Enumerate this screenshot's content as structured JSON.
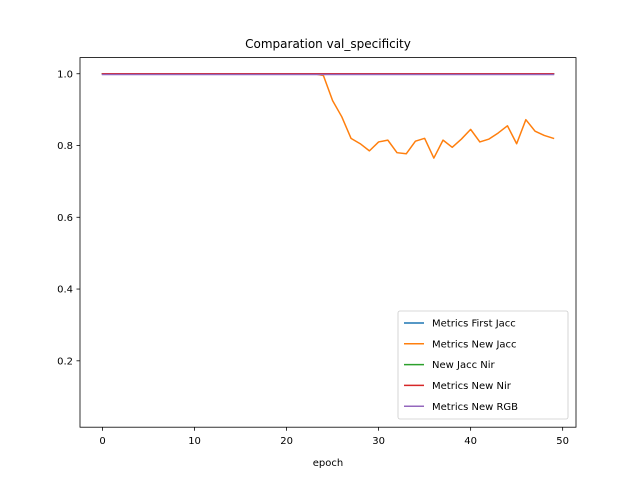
{
  "chart_data": {
    "type": "line",
    "title": "Comparation val_specificity",
    "xlabel": "epoch",
    "ylabel": "",
    "xlim": [
      -2.45,
      51.45
    ],
    "ylim": [
      0.015,
      1.045
    ],
    "x_ticks": [
      0,
      10,
      20,
      30,
      40,
      50
    ],
    "y_ticks": [
      0.2,
      0.4,
      0.6,
      0.8,
      1.0
    ],
    "x_tick_labels": [
      "0",
      "10",
      "20",
      "30",
      "40",
      "50"
    ],
    "y_tick_labels": [
      "0.2",
      "0.4",
      "0.6",
      "0.8",
      "1.0"
    ],
    "grid": false,
    "legend_position": "lower-right",
    "x": [
      0,
      1,
      2,
      3,
      4,
      5,
      6,
      7,
      8,
      9,
      10,
      11,
      12,
      13,
      14,
      15,
      16,
      17,
      18,
      19,
      20,
      21,
      22,
      23,
      24,
      25,
      26,
      27,
      28,
      29,
      30,
      31,
      32,
      33,
      34,
      35,
      36,
      37,
      38,
      39,
      40,
      41,
      42,
      43,
      44,
      45,
      46,
      47,
      48,
      49
    ],
    "series": [
      {
        "name": "Metrics First Jacc",
        "color": "#1f77b4",
        "values": [
          1.0,
          1.0,
          1.0,
          1.0,
          1.0,
          1.0,
          1.0,
          1.0,
          1.0,
          1.0,
          1.0,
          1.0,
          1.0,
          1.0,
          1.0,
          1.0,
          1.0,
          1.0,
          1.0,
          1.0,
          1.0,
          1.0,
          1.0,
          1.0,
          1.0,
          1.0,
          1.0,
          1.0,
          1.0,
          1.0,
          1.0,
          1.0,
          1.0,
          1.0,
          1.0,
          1.0,
          1.0,
          1.0,
          1.0,
          1.0,
          1.0,
          1.0,
          1.0,
          1.0,
          1.0,
          1.0,
          1.0,
          1.0,
          1.0,
          1.0
        ]
      },
      {
        "name": "Metrics New Jacc",
        "color": "#ff7f0e",
        "values": [
          1.0,
          1.0,
          1.0,
          1.0,
          1.0,
          1.0,
          1.0,
          1.0,
          1.0,
          1.0,
          1.0,
          1.0,
          1.0,
          1.0,
          1.0,
          1.0,
          1.0,
          1.0,
          1.0,
          1.0,
          1.0,
          1.0,
          1.0,
          1.0,
          0.995,
          0.925,
          0.88,
          0.82,
          0.805,
          0.785,
          0.81,
          0.815,
          0.78,
          0.777,
          0.812,
          0.82,
          0.765,
          0.815,
          0.795,
          0.818,
          0.845,
          0.81,
          0.818,
          0.835,
          0.855,
          0.805,
          0.872,
          0.84,
          0.828,
          0.82
        ]
      },
      {
        "name": "New Jacc Nir",
        "color": "#2ca02c",
        "values": [
          1.0,
          1.0,
          1.0,
          1.0,
          1.0,
          1.0,
          1.0,
          1.0,
          1.0,
          1.0,
          1.0,
          1.0,
          1.0,
          1.0,
          1.0,
          1.0,
          1.0,
          1.0,
          1.0,
          1.0,
          1.0,
          1.0,
          1.0,
          1.0,
          1.0,
          1.0,
          1.0,
          1.0,
          1.0,
          1.0,
          1.0,
          1.0,
          1.0,
          1.0,
          1.0,
          1.0,
          1.0,
          1.0,
          1.0,
          1.0,
          1.0,
          1.0,
          1.0,
          1.0,
          1.0,
          1.0,
          1.0,
          1.0,
          1.0,
          1.0
        ]
      },
      {
        "name": "Metrics New Nir",
        "color": "#d62728",
        "values": [
          1.0,
          1.0,
          1.0,
          1.0,
          1.0,
          1.0,
          1.0,
          1.0,
          1.0,
          1.0,
          1.0,
          1.0,
          1.0,
          1.0,
          1.0,
          1.0,
          1.0,
          1.0,
          1.0,
          1.0,
          1.0,
          1.0,
          1.0,
          1.0,
          1.0,
          1.0,
          1.0,
          1.0,
          1.0,
          1.0,
          1.0,
          1.0,
          1.0,
          1.0,
          1.0,
          1.0,
          1.0,
          1.0,
          1.0,
          1.0,
          1.0,
          1.0,
          1.0,
          1.0,
          1.0,
          1.0,
          1.0,
          1.0,
          1.0,
          1.0
        ]
      },
      {
        "name": "Metrics New RGB",
        "color": "#9467bd",
        "values": [
          0.998,
          0.998,
          0.998,
          0.998,
          0.998,
          0.998,
          0.998,
          0.998,
          0.998,
          0.998,
          0.998,
          0.998,
          0.998,
          0.998,
          0.998,
          0.998,
          0.998,
          0.998,
          0.998,
          0.998,
          0.998,
          0.998,
          0.998,
          0.998,
          0.998,
          0.998,
          0.998,
          0.998,
          0.998,
          0.998,
          0.998,
          0.998,
          0.998,
          0.998,
          0.998,
          0.998,
          0.998,
          0.998,
          0.998,
          0.998,
          0.998,
          0.998,
          0.998,
          0.998,
          0.998,
          0.998,
          0.998,
          0.998,
          0.998,
          0.998
        ]
      }
    ]
  }
}
